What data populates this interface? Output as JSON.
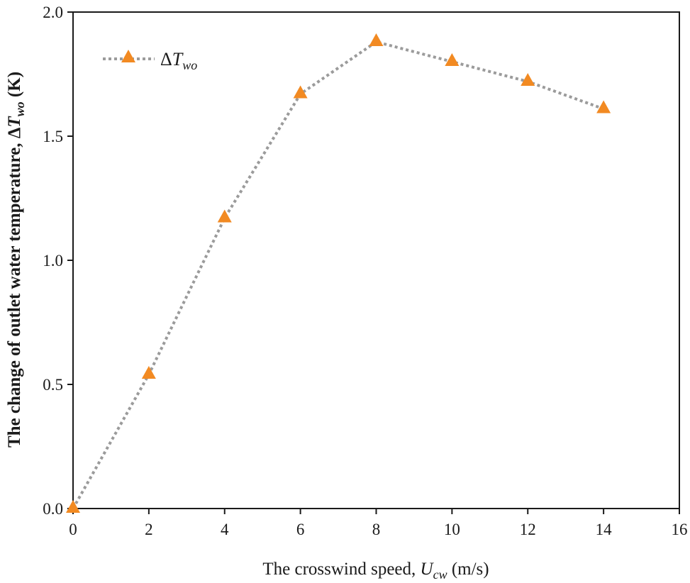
{
  "chart_data": {
    "type": "line",
    "title": "",
    "x": [
      0,
      2,
      4,
      6,
      8,
      10,
      12,
      14
    ],
    "series": [
      {
        "name": "ΔT_wo",
        "values": [
          0.0,
          0.54,
          1.17,
          1.67,
          1.88,
          1.8,
          1.72,
          1.61
        ],
        "line_style": "dotted",
        "line_color": "#9b9b9b",
        "marker": "triangle",
        "marker_color": "#f28a22"
      }
    ],
    "xlabel": {
      "prefix": "The crosswind speed, ",
      "symbol": "U",
      "subscript": "cw",
      "suffix": " (m/s)"
    },
    "ylabel": {
      "prefix": "The change of outlet water temperature, Δ",
      "symbol": "T",
      "subscript": "wo",
      "suffix": " (K)"
    },
    "xlim": [
      0,
      16
    ],
    "ylim": [
      0,
      2.0
    ],
    "xticks": [
      "0",
      "2",
      "4",
      "6",
      "8",
      "10",
      "12",
      "14",
      "16"
    ],
    "yticks": [
      "0.0",
      "0.5",
      "1.0",
      "1.5",
      "2.0"
    ],
    "legend": {
      "label_prefix": "Δ",
      "label_symbol": "T",
      "label_subscript": "wo",
      "position": "top-left"
    },
    "grid": false
  }
}
